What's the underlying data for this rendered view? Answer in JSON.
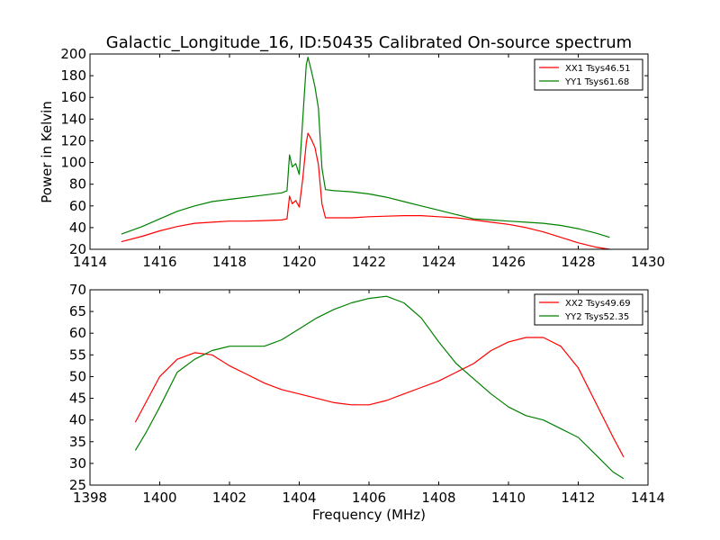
{
  "page": {
    "title": "Galactic_Longitude_16, ID:50435 Calibrated On-source spectrum"
  },
  "chart_data": [
    {
      "type": "line",
      "title": "Galactic_Longitude_16, ID:50435 Calibrated On-source spectrum",
      "xlabel": "",
      "ylabel": "Power in Kelvin",
      "xlim": [
        1414,
        1430
      ],
      "ylim": [
        20,
        200
      ],
      "xticks": [
        1414,
        1416,
        1418,
        1420,
        1422,
        1424,
        1426,
        1428,
        1430
      ],
      "yticks": [
        20,
        40,
        60,
        80,
        100,
        120,
        140,
        160,
        180,
        200
      ],
      "grid": false,
      "legend_position": "top-right",
      "series": [
        {
          "name": "XX1 Tsys46.51",
          "color": "#ff0000",
          "points": [
            [
              1414.9,
              27
            ],
            [
              1415.5,
              32
            ],
            [
              1416.0,
              37
            ],
            [
              1416.5,
              41
            ],
            [
              1417.0,
              44
            ],
            [
              1417.5,
              45
            ],
            [
              1418.0,
              46
            ],
            [
              1418.5,
              46
            ],
            [
              1419.0,
              46.5
            ],
            [
              1419.5,
              47
            ],
            [
              1419.65,
              48
            ],
            [
              1419.72,
              69
            ],
            [
              1419.8,
              62
            ],
            [
              1419.9,
              65
            ],
            [
              1420.0,
              59
            ],
            [
              1420.1,
              85
            ],
            [
              1420.2,
              118
            ],
            [
              1420.25,
              127
            ],
            [
              1420.35,
              121
            ],
            [
              1420.45,
              114
            ],
            [
              1420.55,
              98
            ],
            [
              1420.65,
              62
            ],
            [
              1420.75,
              49
            ],
            [
              1421.0,
              49
            ],
            [
              1421.5,
              49
            ],
            [
              1422.0,
              50
            ],
            [
              1422.5,
              50.5
            ],
            [
              1423.0,
              51
            ],
            [
              1423.5,
              51
            ],
            [
              1424.0,
              50
            ],
            [
              1424.5,
              49
            ],
            [
              1425.0,
              47
            ],
            [
              1425.5,
              45
            ],
            [
              1426.0,
              43
            ],
            [
              1426.5,
              40
            ],
            [
              1427.0,
              36
            ],
            [
              1427.5,
              31
            ],
            [
              1428.0,
              26
            ],
            [
              1428.5,
              22
            ],
            [
              1428.9,
              20
            ]
          ]
        },
        {
          "name": "YY1 Tsys61.68",
          "color": "#008000",
          "points": [
            [
              1414.9,
              34
            ],
            [
              1415.5,
              41
            ],
            [
              1416.0,
              48
            ],
            [
              1416.5,
              55
            ],
            [
              1417.0,
              60
            ],
            [
              1417.5,
              64
            ],
            [
              1418.0,
              66
            ],
            [
              1418.5,
              68
            ],
            [
              1419.0,
              70
            ],
            [
              1419.5,
              72
            ],
            [
              1419.65,
              74
            ],
            [
              1419.72,
              107
            ],
            [
              1419.8,
              96
            ],
            [
              1419.9,
              99
            ],
            [
              1420.0,
              89
            ],
            [
              1420.1,
              140
            ],
            [
              1420.2,
              190
            ],
            [
              1420.25,
              197
            ],
            [
              1420.35,
              184
            ],
            [
              1420.45,
              170
            ],
            [
              1420.55,
              150
            ],
            [
              1420.65,
              95
            ],
            [
              1420.75,
              75
            ],
            [
              1421.0,
              74
            ],
            [
              1421.5,
              73
            ],
            [
              1422.0,
              71
            ],
            [
              1422.5,
              68
            ],
            [
              1423.0,
              64
            ],
            [
              1423.5,
              60
            ],
            [
              1424.0,
              56
            ],
            [
              1424.5,
              52
            ],
            [
              1425.0,
              48
            ],
            [
              1425.5,
              47
            ],
            [
              1426.0,
              46
            ],
            [
              1426.5,
              45
            ],
            [
              1427.0,
              44
            ],
            [
              1427.5,
              42
            ],
            [
              1428.0,
              39
            ],
            [
              1428.5,
              35
            ],
            [
              1428.9,
              31
            ]
          ]
        }
      ]
    },
    {
      "type": "line",
      "title": "",
      "xlabel": "Frequency (MHz)",
      "ylabel": "",
      "xlim": [
        1398,
        1414
      ],
      "ylim": [
        25,
        70
      ],
      "xticks": [
        1398,
        1400,
        1402,
        1404,
        1406,
        1408,
        1410,
        1412,
        1414
      ],
      "yticks": [
        25,
        30,
        35,
        40,
        45,
        50,
        55,
        60,
        65,
        70
      ],
      "grid": false,
      "legend_position": "top-right",
      "series": [
        {
          "name": "XX2 Tsys49.69",
          "color": "#ff0000",
          "points": [
            [
              1399.3,
              39.5
            ],
            [
              1399.6,
              44
            ],
            [
              1400.0,
              50
            ],
            [
              1400.5,
              54
            ],
            [
              1401.0,
              55.5
            ],
            [
              1401.5,
              55
            ],
            [
              1402.0,
              52.5
            ],
            [
              1402.5,
              50.5
            ],
            [
              1403.0,
              48.5
            ],
            [
              1403.5,
              47
            ],
            [
              1404.0,
              46
            ],
            [
              1404.5,
              45
            ],
            [
              1405.0,
              44
            ],
            [
              1405.5,
              43.5
            ],
            [
              1406.0,
              43.5
            ],
            [
              1406.5,
              44.5
            ],
            [
              1407.0,
              46
            ],
            [
              1407.5,
              47.5
            ],
            [
              1408.0,
              49
            ],
            [
              1408.5,
              51
            ],
            [
              1409.0,
              53
            ],
            [
              1409.5,
              56
            ],
            [
              1410.0,
              58
            ],
            [
              1410.5,
              59
            ],
            [
              1411.0,
              59
            ],
            [
              1411.5,
              57
            ],
            [
              1412.0,
              52
            ],
            [
              1412.5,
              44
            ],
            [
              1413.0,
              36
            ],
            [
              1413.3,
              31.5
            ]
          ]
        },
        {
          "name": "YY2 Tsys52.35",
          "color": "#008000",
          "points": [
            [
              1399.3,
              33
            ],
            [
              1399.6,
              37
            ],
            [
              1400.0,
              43
            ],
            [
              1400.5,
              51
            ],
            [
              1401.0,
              54
            ],
            [
              1401.5,
              56
            ],
            [
              1402.0,
              57
            ],
            [
              1402.5,
              57
            ],
            [
              1403.0,
              57
            ],
            [
              1403.5,
              58.5
            ],
            [
              1404.0,
              61
            ],
            [
              1404.5,
              63.5
            ],
            [
              1405.0,
              65.5
            ],
            [
              1405.5,
              67
            ],
            [
              1406.0,
              68
            ],
            [
              1406.5,
              68.5
            ],
            [
              1407.0,
              67
            ],
            [
              1407.5,
              63.5
            ],
            [
              1408.0,
              58
            ],
            [
              1408.5,
              53
            ],
            [
              1409.0,
              49.5
            ],
            [
              1409.5,
              46
            ],
            [
              1410.0,
              43
            ],
            [
              1410.5,
              41
            ],
            [
              1411.0,
              40
            ],
            [
              1411.5,
              38
            ],
            [
              1412.0,
              36
            ],
            [
              1412.5,
              32
            ],
            [
              1413.0,
              28
            ],
            [
              1413.3,
              26.5
            ]
          ]
        }
      ]
    }
  ]
}
